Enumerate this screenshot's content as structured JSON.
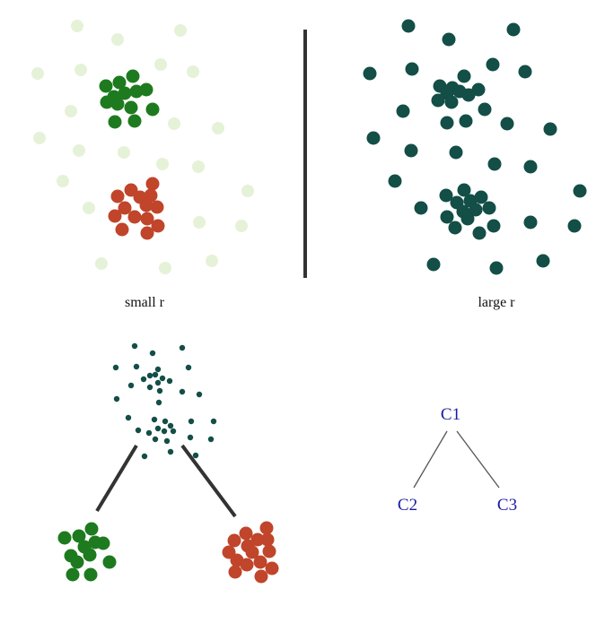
{
  "panels": {
    "small_r": {
      "caption": "small r"
    },
    "large_r": {
      "caption": "large r"
    }
  },
  "tree": {
    "root": "C1",
    "children": [
      "C2",
      "C3"
    ]
  },
  "colors": {
    "cluster_green": "#1e7a1e",
    "cluster_red": "#c0452a",
    "faded_points": "#e6f2d8",
    "teal_points": "#134e47",
    "divider": "#333333",
    "tree_label": "#1a1aa6",
    "tree_edge": "#555555"
  }
}
